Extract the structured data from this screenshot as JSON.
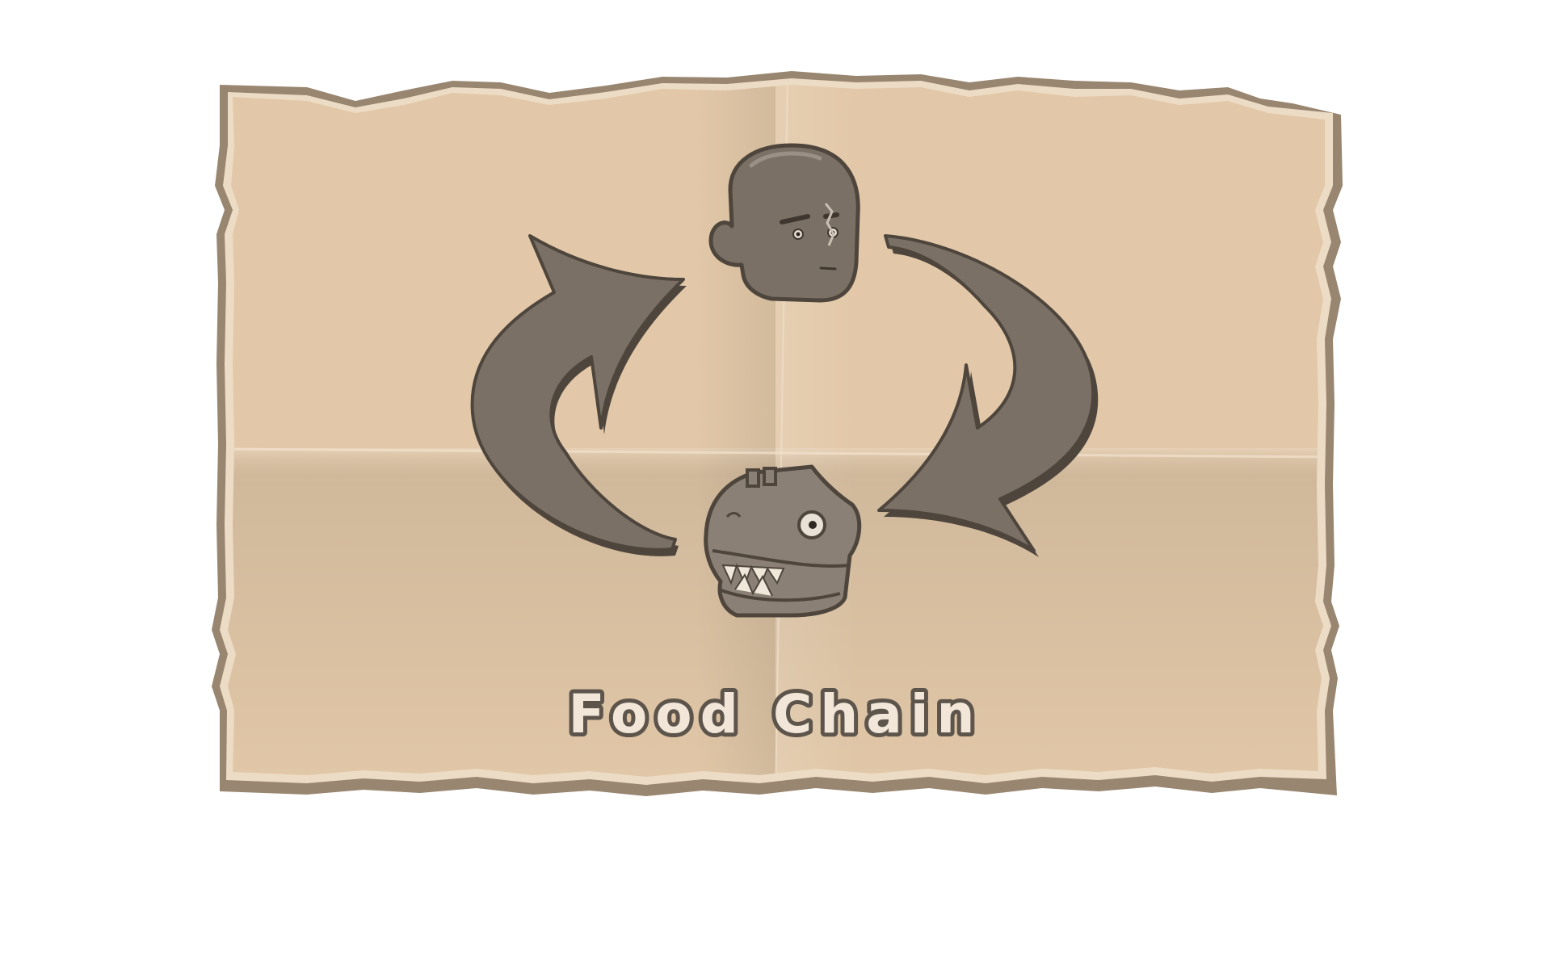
{
  "screen": {
    "title": "Food Chain",
    "nodes": [
      {
        "icon": "human-head-icon"
      },
      {
        "icon": "dinosaur-head-icon"
      }
    ],
    "arrows": [
      {
        "icon": "cycle-arrow-right-icon"
      },
      {
        "icon": "cycle-arrow-left-icon"
      }
    ]
  },
  "colors": {
    "parchment": "#E2C8A8",
    "parchment_shade": "#D3B898",
    "border_outer": "#998670",
    "border_inner": "#EDDCC5",
    "arrow_fill": "#7A7065",
    "arrow_outline": "#4E453C",
    "title_fill": "#F1E6D8",
    "title_outline": "#5D554C"
  }
}
